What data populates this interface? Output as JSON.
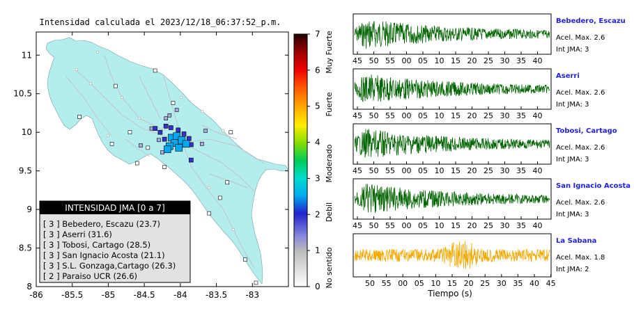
{
  "map": {
    "title": "Intensidad calculada el 2023/12/18_06:37:52_p.m.",
    "xaxis": {
      "ticks": [
        "-86",
        "-85.5",
        "-85",
        "-84.5",
        "-84",
        "-83.5",
        "-83"
      ],
      "range": [
        -86,
        -82.5
      ]
    },
    "yaxis": {
      "ticks": [
        "8",
        "8.5",
        "9",
        "9.5",
        "10",
        "10.5",
        "11"
      ],
      "range": [
        8,
        11.3
      ]
    },
    "legend": {
      "title": "INTENSIDAD JMA [0 a 7]",
      "items": [
        "[ 3 ]  Bebedero, Escazu (23.7)",
        "[ 3 ]  Aserri (31.6)",
        "[ 3 ]  Tobosi, Cartago (28.5)",
        "[ 3 ]  San Ignacio Acosta (21.1)",
        "[ 3 ]  S.L. Gonzaga,Cartago (26.3)",
        "[ 2 ]  Paraiso UCR (26.6)"
      ]
    },
    "colorbar": {
      "ticks": [
        "0",
        "1",
        "2",
        "3",
        "4",
        "5",
        "6",
        "7"
      ],
      "labels": [
        "No sentido",
        "Debil",
        "Moderado",
        "Fuerte",
        "Muy Fuerte"
      ]
    },
    "colors": {
      "land": "#b3edee",
      "sea": "#ffffff",
      "roads": "#c0c0c0"
    }
  },
  "chart_data": [
    {
      "type": "scatter",
      "title": "Intensidad calculada el 2023/12/18_06:37:52_p.m.",
      "xlim": [
        -86,
        -82.5
      ],
      "ylim": [
        8,
        11.3
      ],
      "color_scale": [
        0,
        7
      ],
      "points": [
        {
          "x": -84.12,
          "y": 9.93,
          "v": 3
        },
        {
          "x": -84.05,
          "y": 9.95,
          "v": 3
        },
        {
          "x": -83.98,
          "y": 9.9,
          "v": 3
        },
        {
          "x": -84.08,
          "y": 9.86,
          "v": 3
        },
        {
          "x": -84.15,
          "y": 9.82,
          "v": 3
        },
        {
          "x": -83.92,
          "y": 9.85,
          "v": 3
        },
        {
          "x": -84.02,
          "y": 9.8,
          "v": 3
        },
        {
          "x": -84.18,
          "y": 9.78,
          "v": 3
        },
        {
          "x": -84.22,
          "y": 9.91,
          "v": 2
        },
        {
          "x": -84.28,
          "y": 10.0,
          "v": 2
        },
        {
          "x": -84.35,
          "y": 10.05,
          "v": 2
        },
        {
          "x": -84.2,
          "y": 10.08,
          "v": 2
        },
        {
          "x": -84.13,
          "y": 10.06,
          "v": 2
        },
        {
          "x": -84.03,
          "y": 10.03,
          "v": 2
        },
        {
          "x": -83.95,
          "y": 9.98,
          "v": 2
        },
        {
          "x": -83.88,
          "y": 9.92,
          "v": 2
        },
        {
          "x": -83.85,
          "y": 9.84,
          "v": 2
        },
        {
          "x": -84.25,
          "y": 9.74,
          "v": 1
        },
        {
          "x": -84.4,
          "y": 10.05,
          "v": 1
        },
        {
          "x": -84.3,
          "y": 9.9,
          "v": 1
        },
        {
          "x": -83.7,
          "y": 9.85,
          "v": 1
        },
        {
          "x": -83.85,
          "y": 9.64,
          "v": 2
        },
        {
          "x": -84.05,
          "y": 10.29,
          "v": 1
        },
        {
          "x": -84.2,
          "y": 10.18,
          "v": 1
        },
        {
          "x": -84.15,
          "y": 10.22,
          "v": 1
        },
        {
          "x": -83.65,
          "y": 10.02,
          "v": 1
        },
        {
          "x": -84.55,
          "y": 9.83,
          "v": 1
        },
        {
          "x": -84.1,
          "y": 10.38,
          "v": 0
        },
        {
          "x": -84.22,
          "y": 9.55,
          "v": 0
        },
        {
          "x": -84.6,
          "y": 9.6,
          "v": 0
        },
        {
          "x": -84.9,
          "y": 10.6,
          "v": 0
        },
        {
          "x": -84.35,
          "y": 10.8,
          "v": 0
        },
        {
          "x": -85.4,
          "y": 10.2,
          "v": 0
        },
        {
          "x": -84.95,
          "y": 9.85,
          "v": 0
        },
        {
          "x": -83.45,
          "y": 9.15,
          "v": 0
        },
        {
          "x": -83.6,
          "y": 8.95,
          "v": 0
        },
        {
          "x": -83.35,
          "y": 9.35,
          "v": 0
        },
        {
          "x": -83.1,
          "y": 8.35,
          "v": 0
        },
        {
          "x": -82.95,
          "y": 8.05,
          "v": 0
        },
        {
          "x": -83.3,
          "y": 10.0,
          "v": 0
        },
        {
          "x": -84.7,
          "y": 10.0,
          "v": 0
        },
        {
          "x": -84.45,
          "y": 9.8,
          "v": 0
        }
      ]
    },
    {
      "type": "line",
      "xlabel": "Tiempo (s)",
      "series": [
        {
          "name": "Bebedero, Escazu",
          "accel_max": "Acel. Max. 2.6",
          "int_jma": "Int JMA: 3",
          "x_ticks": [
            "45",
            "50",
            "55",
            "00",
            "05",
            "10",
            "15",
            "20",
            "25",
            "30",
            "35",
            "40"
          ],
          "color": "#006400"
        },
        {
          "name": "Aserri",
          "accel_max": "Acel. Max. 2.6",
          "int_jma": "Int JMA: 3",
          "x_ticks": [
            "45",
            "50",
            "55",
            "00",
            "05",
            "10",
            "15",
            "20",
            "25",
            "30",
            "35",
            "40"
          ],
          "color": "#006400"
        },
        {
          "name": "Tobosi, Cartago",
          "accel_max": "Acel. Max. 2.6",
          "int_jma": "Int JMA: 3",
          "x_ticks": [
            "45",
            "50",
            "55",
            "00",
            "05",
            "10",
            "15",
            "20",
            "25",
            "30",
            "35",
            "40"
          ],
          "color": "#006400"
        },
        {
          "name": "San Ignacio Acosta",
          "accel_max": "Acel. Max. 2.6",
          "int_jma": "Int JMA: 3",
          "x_ticks": [
            "45",
            "50",
            "55",
            "00",
            "05",
            "10",
            "15",
            "20",
            "25",
            "30",
            "35",
            "40"
          ],
          "color": "#006400"
        },
        {
          "name": "La Sabana",
          "accel_max": "Acel. Max. 1.8",
          "int_jma": "Int JMA: 2",
          "x_ticks": [
            "50",
            "55",
            "00",
            "05",
            "10",
            "15",
            "20",
            "25",
            "30",
            "35",
            "40",
            "45"
          ],
          "color": "#f5a800"
        }
      ]
    }
  ]
}
